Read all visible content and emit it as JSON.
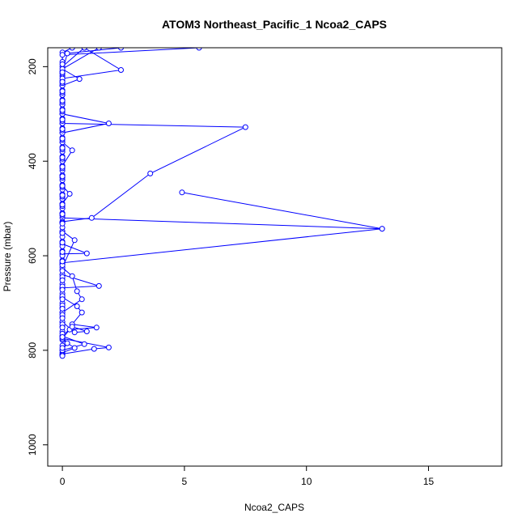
{
  "chart_data": {
    "type": "line",
    "title": "ATOM3 Northeast_Pacific_1 Ncoa2_CAPS",
    "xlabel": "Ncoa2_CAPS",
    "ylabel": "Pressure (mbar)",
    "xlim": [
      -0.6,
      18.0
    ],
    "ylim": [
      1045,
      160
    ],
    "y_reversed": true,
    "x_ticks": [
      0,
      5,
      10,
      15
    ],
    "x_tick_labels": [
      "0",
      "5",
      "10",
      "15"
    ],
    "y_ticks": [
      200,
      400,
      600,
      800,
      1000
    ],
    "y_tick_labels": [
      "200",
      "400",
      "600",
      "800",
      "1000"
    ],
    "grid": false,
    "series_color": "#0000ff",
    "marker": "open-circle",
    "profiles": [
      [
        [
          0.0,
          810
        ],
        [
          0.0,
          800
        ],
        [
          0.2,
          785
        ],
        [
          0.0,
          770
        ],
        [
          0.0,
          750
        ],
        [
          0.0,
          730
        ],
        [
          0.0,
          710
        ],
        [
          0.0,
          690
        ],
        [
          0.0,
          670
        ],
        [
          0.0,
          650
        ],
        [
          0.0,
          630
        ],
        [
          0.0,
          610
        ],
        [
          0.0,
          590
        ],
        [
          0.0,
          570
        ],
        [
          0.0,
          550
        ],
        [
          0.0,
          530
        ],
        [
          0.0,
          510
        ],
        [
          0.0,
          490
        ],
        [
          0.0,
          470
        ],
        [
          0.0,
          450
        ],
        [
          0.0,
          430
        ],
        [
          0.0,
          410
        ],
        [
          0.0,
          390
        ],
        [
          0.0,
          370
        ],
        [
          0.0,
          350
        ],
        [
          0.0,
          330
        ],
        [
          0.0,
          310
        ],
        [
          0.0,
          290
        ],
        [
          0.0,
          270
        ],
        [
          0.0,
          250
        ],
        [
          0.0,
          230
        ],
        [
          0.0,
          210
        ],
        [
          0.0,
          190
        ],
        [
          0.0,
          170
        ],
        [
          0.4,
          160
        ]
      ],
      [
        [
          0.0,
          805
        ],
        [
          0.5,
          795
        ],
        [
          0.0,
          778
        ],
        [
          0.0,
          760
        ],
        [
          0.0,
          740
        ],
        [
          0.0,
          720
        ],
        [
          0.0,
          700
        ],
        [
          0.0,
          680
        ],
        [
          0.0,
          660
        ],
        [
          0.0,
          640
        ],
        [
          0.0,
          615
        ],
        [
          13.1,
          543
        ],
        [
          0.0,
          520
        ],
        [
          0.0,
          500
        ],
        [
          0.0,
          480
        ],
        [
          0.0,
          460
        ],
        [
          0.0,
          440
        ],
        [
          0.0,
          420
        ],
        [
          0.0,
          400
        ],
        [
          0.0,
          380
        ],
        [
          0.0,
          360
        ],
        [
          0.0,
          340
        ],
        [
          0.0,
          320
        ],
        [
          0.0,
          300
        ],
        [
          0.0,
          280
        ],
        [
          0.0,
          260
        ],
        [
          0.0,
          240
        ],
        [
          0.0,
          220
        ],
        [
          0.0,
          200
        ],
        [
          0.9,
          160
        ]
      ],
      [
        [
          0.0,
          808
        ],
        [
          1.3,
          797
        ],
        [
          1.9,
          794
        ],
        [
          0.0,
          775
        ],
        [
          0.3,
          756
        ],
        [
          1.4,
          752
        ],
        [
          0.4,
          745
        ],
        [
          0.8,
          720
        ],
        [
          0.6,
          707
        ],
        [
          0.0,
          688
        ],
        [
          0.0,
          668
        ],
        [
          1.5,
          664
        ],
        [
          0.0,
          640
        ],
        [
          0.0,
          618
        ],
        [
          0.0,
          596
        ],
        [
          1.0,
          595
        ],
        [
          0.0,
          575
        ],
        [
          0.0,
          552
        ],
        [
          0.0,
          528
        ],
        [
          1.2,
          520
        ],
        [
          3.6,
          426
        ],
        [
          7.5,
          328
        ],
        [
          0.0,
          320
        ],
        [
          0.0,
          300
        ],
        [
          0.0,
          280
        ],
        [
          0.0,
          260
        ],
        [
          0.0,
          240
        ],
        [
          0.0,
          225
        ],
        [
          2.4,
          207
        ],
        [
          0.9,
          160
        ]
      ],
      [
        [
          0.0,
          800
        ],
        [
          0.9,
          787
        ],
        [
          0.0,
          770
        ],
        [
          0.4,
          750
        ],
        [
          1.0,
          760
        ],
        [
          0.5,
          762
        ],
        [
          0.0,
          740
        ],
        [
          0.0,
          720
        ],
        [
          0.8,
          692
        ],
        [
          0.6,
          675
        ],
        [
          0.4,
          643
        ],
        [
          0.0,
          625
        ],
        [
          0.5,
          567
        ],
        [
          0.0,
          548
        ],
        [
          0.0,
          530
        ],
        [
          0.0,
          510
        ],
        [
          0.0,
          490
        ],
        [
          0.3,
          469
        ],
        [
          0.0,
          452
        ],
        [
          0.0,
          430
        ],
        [
          0.0,
          410
        ],
        [
          0.4,
          377
        ],
        [
          0.0,
          360
        ],
        [
          0.0,
          340
        ],
        [
          1.9,
          320
        ],
        [
          0.0,
          300
        ],
        [
          0.0,
          280
        ],
        [
          0.0,
          260
        ],
        [
          0.0,
          240
        ],
        [
          0.7,
          226
        ],
        [
          0.0,
          205
        ],
        [
          1.5,
          160
        ]
      ],
      [
        [
          4.9,
          466
        ],
        [
          13.1,
          543
        ]
      ],
      [
        [
          0.0,
          810
        ],
        [
          0.0,
          790
        ],
        [
          0.0,
          765
        ],
        [
          0.0,
          745
        ],
        [
          0.0,
          725
        ],
        [
          0.0,
          705
        ],
        [
          0.0,
          685
        ],
        [
          0.0,
          665
        ],
        [
          0.0,
          645
        ],
        [
          0.0,
          620
        ],
        [
          0.0,
          600
        ],
        [
          0.0,
          580
        ],
        [
          0.0,
          560
        ],
        [
          0.0,
          540
        ],
        [
          0.0,
          515
        ],
        [
          0.0,
          495
        ],
        [
          0.0,
          475
        ],
        [
          0.0,
          455
        ],
        [
          0.0,
          435
        ],
        [
          0.0,
          415
        ],
        [
          0.0,
          395
        ],
        [
          0.0,
          375
        ],
        [
          0.0,
          355
        ],
        [
          0.0,
          335
        ],
        [
          0.0,
          315
        ],
        [
          0.0,
          295
        ],
        [
          0.0,
          275
        ],
        [
          0.0,
          255
        ],
        [
          0.0,
          235
        ],
        [
          0.0,
          215
        ],
        [
          0.0,
          195
        ],
        [
          0.0,
          175
        ],
        [
          5.6,
          160
        ]
      ],
      [
        [
          0.0,
          812
        ],
        [
          0.0,
          795
        ],
        [
          0.0,
          772
        ],
        [
          0.0,
          752
        ],
        [
          0.0,
          732
        ],
        [
          0.0,
          712
        ],
        [
          0.0,
          692
        ],
        [
          0.0,
          672
        ],
        [
          0.0,
          652
        ],
        [
          0.0,
          632
        ],
        [
          0.0,
          612
        ],
        [
          0.0,
          592
        ],
        [
          0.0,
          572
        ],
        [
          0.0,
          552
        ],
        [
          0.0,
          532
        ],
        [
          0.0,
          512
        ],
        [
          0.0,
          492
        ],
        [
          0.0,
          472
        ],
        [
          0.0,
          452
        ],
        [
          0.0,
          432
        ],
        [
          0.0,
          412
        ],
        [
          0.0,
          392
        ],
        [
          0.0,
          372
        ],
        [
          0.0,
          352
        ],
        [
          0.0,
          332
        ],
        [
          0.0,
          312
        ],
        [
          0.0,
          292
        ],
        [
          0.0,
          272
        ],
        [
          0.0,
          252
        ],
        [
          0.0,
          232
        ],
        [
          0.0,
          212
        ],
        [
          0.2,
          172
        ],
        [
          2.4,
          160
        ]
      ]
    ]
  }
}
